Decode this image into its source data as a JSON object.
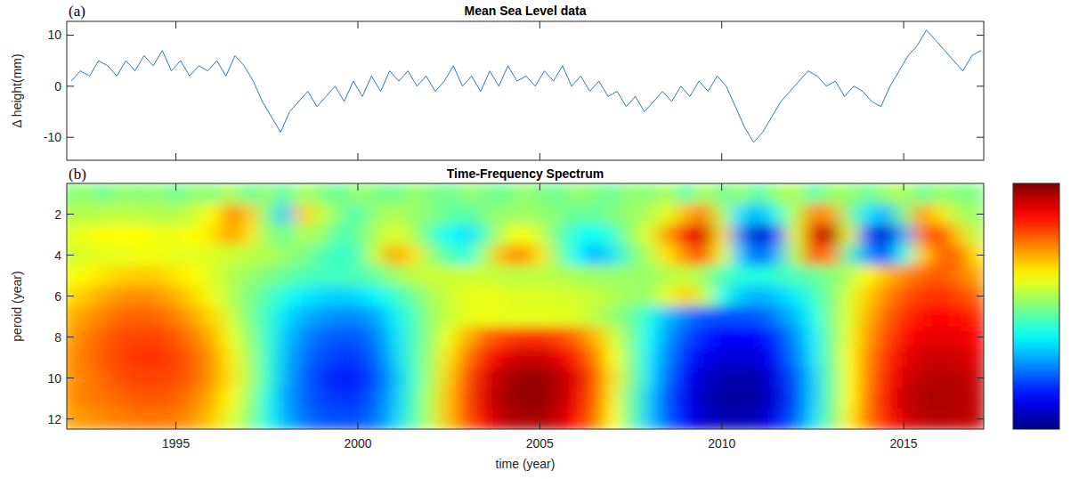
{
  "chart_data": [
    {
      "type": "line",
      "title": "Mean Sea Level data",
      "panel_label": "(a)",
      "y_label": "Δ height(mm)",
      "x": [
        1992.125,
        1992.375,
        1992.625,
        1992.875,
        1993.125,
        1993.375,
        1993.625,
        1993.875,
        1994.125,
        1994.375,
        1994.625,
        1994.875,
        1995.125,
        1995.375,
        1995.625,
        1995.875,
        1996.125,
        1996.375,
        1996.625,
        1996.875,
        1997.125,
        1997.375,
        1997.625,
        1997.875,
        1998.125,
        1998.375,
        1998.625,
        1998.875,
        1999.125,
        1999.375,
        1999.625,
        1999.875,
        2000.125,
        2000.375,
        2000.625,
        2000.875,
        2001.125,
        2001.375,
        2001.625,
        2001.875,
        2002.125,
        2002.375,
        2002.625,
        2002.875,
        2003.125,
        2003.375,
        2003.625,
        2003.875,
        2004.125,
        2004.375,
        2004.625,
        2004.875,
        2005.125,
        2005.375,
        2005.625,
        2005.875,
        2006.125,
        2006.375,
        2006.625,
        2006.875,
        2007.125,
        2007.375,
        2007.625,
        2007.875,
        2008.125,
        2008.375,
        2008.625,
        2008.875,
        2009.125,
        2009.375,
        2009.625,
        2009.875,
        2010.125,
        2010.375,
        2010.625,
        2010.875,
        2011.125,
        2011.375,
        2011.625,
        2011.875,
        2012.125,
        2012.375,
        2012.625,
        2012.875,
        2013.125,
        2013.375,
        2013.625,
        2013.875,
        2014.125,
        2014.375,
        2014.625,
        2014.875,
        2015.125,
        2015.375,
        2015.625,
        2015.875,
        2016.125,
        2016.375,
        2016.625,
        2016.875,
        2017.125
      ],
      "values": [
        1,
        3,
        2,
        5,
        4,
        2,
        5,
        3,
        6,
        4,
        7,
        3,
        5,
        2,
        4,
        3,
        5,
        2,
        6,
        4,
        1,
        -3,
        -6,
        -9,
        -5,
        -3,
        -1,
        -4,
        -2,
        0,
        -3,
        1,
        -2,
        2,
        -1,
        3,
        1,
        3,
        0,
        2,
        -1,
        1,
        4,
        0,
        2,
        -1,
        3,
        0,
        4,
        1,
        2,
        0,
        3,
        1,
        4,
        0,
        2,
        -1,
        1,
        -2,
        -1,
        -4,
        -2,
        -5,
        -3,
        -1,
        -3,
        0,
        -2,
        1,
        -1,
        2,
        0,
        -4,
        -8,
        -11,
        -9,
        -6,
        -3,
        -1,
        1,
        3,
        2,
        0,
        1,
        -2,
        0,
        -1,
        -3,
        -4,
        0,
        3,
        6,
        8,
        11,
        9,
        7,
        5,
        3,
        6,
        7
      ],
      "color": "#2e78b5",
      "xlim": [
        1992,
        2017.2
      ],
      "xticks": [
        1995,
        2000,
        2005,
        2010,
        2015
      ],
      "ylim": [
        -14.5,
        12.7
      ],
      "yticks": [
        -10,
        0,
        10
      ],
      "tick_labels": "y",
      "grid": false
    },
    {
      "type": "heatmap",
      "title": "Time-Frequency Spectrum",
      "panel_label": "(b)",
      "x_label": "time (year)",
      "y_label": "peroid (year)",
      "x": [
        1992,
        1992.5,
        1993,
        1993.5,
        1994,
        1994.5,
        1995,
        1995.5,
        1996,
        1996.5,
        1997,
        1997.5,
        1998,
        1998.5,
        1999,
        1999.5,
        2000,
        2000.5,
        2001,
        2001.5,
        2002,
        2002.5,
        2003,
        2003.5,
        2004,
        2004.5,
        2005,
        2005.5,
        2006,
        2006.5,
        2007,
        2007.5,
        2008,
        2008.5,
        2009,
        2009.5,
        2010,
        2010.5,
        2011,
        2011.5,
        2012,
        2012.5,
        2013,
        2013.5,
        2014,
        2014.5,
        2015,
        2015.5,
        2016,
        2016.5,
        2017
      ],
      "y": [
        1,
        2,
        3,
        4,
        5,
        6,
        7,
        8,
        9,
        10,
        11,
        12
      ],
      "z": [
        [
          0,
          0.05,
          -0.05,
          0.05,
          0,
          0.05,
          -0.05,
          0.05,
          0,
          0.1,
          -0.05,
          0.05,
          -0.1,
          0.1,
          0,
          -0.05,
          0.05,
          0,
          -0.05,
          0.05,
          0,
          -0.05,
          0.05,
          0,
          -0.05,
          0.05,
          0,
          -0.05,
          0.05,
          0,
          -0.05,
          0.05,
          0,
          0.1,
          -0.1,
          0.1,
          -0.05,
          0.05,
          -0.1,
          0.05,
          0.1,
          -0.1,
          0.05,
          0.05,
          -0.05,
          0.05,
          0.1,
          -0.05,
          0.05,
          0,
          0
        ],
        [
          0.1,
          0.1,
          0.12,
          0.12,
          0.12,
          0.1,
          0.1,
          0.15,
          0.25,
          0.5,
          0.35,
          0,
          -0.35,
          0.35,
          0.15,
          0,
          -0.1,
          0.05,
          0.1,
          0.05,
          0,
          -0.05,
          -0.1,
          0,
          0.05,
          0.05,
          0.05,
          0,
          -0.05,
          -0.05,
          0,
          0.05,
          0.1,
          0.2,
          0.4,
          0.5,
          0.1,
          -0.3,
          -0.4,
          -0.2,
          0.1,
          0.5,
          0.45,
          0,
          -0.3,
          -0.4,
          0,
          0.45,
          0.3,
          0.1,
          0.05
        ],
        [
          0.2,
          0.22,
          0.25,
          0.25,
          0.25,
          0.22,
          0.22,
          0.25,
          0.3,
          0.45,
          0.3,
          0.05,
          -0.05,
          0.1,
          0.05,
          -0.1,
          -0.05,
          0.1,
          0.2,
          0.1,
          -0.1,
          -0.25,
          -0.3,
          -0.1,
          0.15,
          0.25,
          0.15,
          -0.05,
          -0.2,
          -0.25,
          -0.15,
          0.05,
          0.2,
          0.45,
          0.75,
          0.85,
          0.3,
          -0.5,
          -0.85,
          -0.6,
          0.2,
          0.8,
          0.9,
          0.2,
          -0.6,
          -0.85,
          -0.4,
          0.5,
          0.7,
          0.35,
          0.1
        ],
        [
          0.15,
          0.18,
          0.2,
          0.2,
          0.22,
          0.22,
          0.2,
          0.2,
          0.18,
          0.15,
          0.12,
          0.1,
          0.05,
          0,
          -0.1,
          -0.15,
          -0.1,
          0.15,
          0.45,
          0.3,
          0.05,
          -0.1,
          -0.2,
          0.1,
          0.4,
          0.5,
          0.3,
          0,
          -0.25,
          -0.4,
          -0.3,
          -0.05,
          0.1,
          0.3,
          0.5,
          0.6,
          0.2,
          -0.35,
          -0.6,
          -0.4,
          0.1,
          0.6,
          0.5,
          -0.1,
          -0.45,
          -0.6,
          -0.2,
          0.35,
          0.55,
          0.55,
          0.3
        ],
        [
          0.22,
          0.26,
          0.3,
          0.33,
          0.35,
          0.34,
          0.3,
          0.25,
          0.18,
          0.1,
          0.05,
          0,
          -0.05,
          -0.1,
          -0.12,
          -0.12,
          -0.1,
          -0.05,
          0.05,
          0.12,
          0.15,
          0.15,
          0.15,
          0.15,
          0.12,
          0.12,
          0.12,
          0.1,
          0.08,
          0.05,
          0.05,
          0.05,
          0.05,
          0.1,
          0.15,
          0.05,
          -0.1,
          -0.18,
          -0.2,
          -0.15,
          -0.1,
          -0.05,
          0,
          0.1,
          0.25,
          0.38,
          0.48,
          0.55,
          0.58,
          0.52,
          0.42
        ],
        [
          0.3,
          0.36,
          0.42,
          0.46,
          0.48,
          0.46,
          0.4,
          0.32,
          0.22,
          0.1,
          0,
          -0.1,
          -0.2,
          -0.28,
          -0.32,
          -0.34,
          -0.32,
          -0.26,
          -0.15,
          -0.04,
          0.08,
          0.15,
          0.2,
          0.22,
          0.2,
          0.18,
          0.18,
          0.18,
          0.16,
          0.14,
          0.1,
          0.05,
          0.05,
          0.2,
          0.35,
          0.15,
          -0.2,
          -0.35,
          -0.4,
          -0.36,
          -0.28,
          -0.15,
          0,
          0.18,
          0.34,
          0.48,
          0.58,
          0.64,
          0.66,
          0.62,
          0.55
        ],
        [
          0.38,
          0.45,
          0.5,
          0.55,
          0.56,
          0.55,
          0.5,
          0.42,
          0.32,
          0.16,
          0,
          -0.15,
          -0.3,
          -0.4,
          -0.45,
          -0.48,
          -0.48,
          -0.42,
          -0.28,
          -0.12,
          0.05,
          0.15,
          0.2,
          0.22,
          0.2,
          0.2,
          0.2,
          0.2,
          0.18,
          0.12,
          0.05,
          -0.05,
          -0.2,
          -0.38,
          -0.5,
          -0.58,
          -0.6,
          -0.6,
          -0.58,
          -0.5,
          -0.38,
          -0.22,
          0,
          0.2,
          0.4,
          0.55,
          0.66,
          0.72,
          0.74,
          0.72,
          0.68
        ],
        [
          0.42,
          0.5,
          0.56,
          0.6,
          0.62,
          0.62,
          0.58,
          0.5,
          0.4,
          0.22,
          0.04,
          -0.15,
          -0.35,
          -0.48,
          -0.55,
          -0.58,
          -0.58,
          -0.5,
          -0.32,
          -0.12,
          0.05,
          0.22,
          0.4,
          0.55,
          0.62,
          0.66,
          0.66,
          0.62,
          0.55,
          0.4,
          0.18,
          -0.02,
          -0.25,
          -0.45,
          -0.6,
          -0.7,
          -0.74,
          -0.76,
          -0.74,
          -0.65,
          -0.48,
          -0.28,
          -0.02,
          0.22,
          0.44,
          0.6,
          0.72,
          0.78,
          0.8,
          0.78,
          0.74
        ],
        [
          0.45,
          0.52,
          0.58,
          0.62,
          0.65,
          0.65,
          0.62,
          0.55,
          0.45,
          0.28,
          0.08,
          -0.15,
          -0.38,
          -0.52,
          -0.6,
          -0.64,
          -0.64,
          -0.55,
          -0.35,
          -0.12,
          0.08,
          0.3,
          0.52,
          0.7,
          0.8,
          0.85,
          0.85,
          0.8,
          0.7,
          0.52,
          0.25,
          0,
          -0.28,
          -0.5,
          -0.68,
          -0.78,
          -0.82,
          -0.84,
          -0.82,
          -0.72,
          -0.52,
          -0.3,
          -0.02,
          0.25,
          0.48,
          0.66,
          0.78,
          0.84,
          0.86,
          0.84,
          0.8
        ],
        [
          0.45,
          0.5,
          0.55,
          0.6,
          0.62,
          0.62,
          0.6,
          0.55,
          0.45,
          0.3,
          0.1,
          -0.15,
          -0.4,
          -0.55,
          -0.65,
          -0.7,
          -0.7,
          -0.6,
          -0.4,
          -0.15,
          0.1,
          0.35,
          0.6,
          0.8,
          0.9,
          0.95,
          0.95,
          0.9,
          0.8,
          0.6,
          0.3,
          0,
          -0.3,
          -0.55,
          -0.75,
          -0.85,
          -0.9,
          -0.92,
          -0.9,
          -0.8,
          -0.6,
          -0.35,
          -0.05,
          0.25,
          0.5,
          0.7,
          0.82,
          0.88,
          0.9,
          0.88,
          0.85
        ],
        [
          0.45,
          0.5,
          0.52,
          0.55,
          0.58,
          0.58,
          0.56,
          0.5,
          0.4,
          0.25,
          0.05,
          -0.2,
          -0.42,
          -0.55,
          -0.62,
          -0.65,
          -0.65,
          -0.55,
          -0.38,
          -0.12,
          0.12,
          0.38,
          0.62,
          0.82,
          0.92,
          0.96,
          0.96,
          0.9,
          0.78,
          0.58,
          0.28,
          -0.05,
          -0.35,
          -0.6,
          -0.78,
          -0.88,
          -0.93,
          -0.95,
          -0.93,
          -0.82,
          -0.62,
          -0.35,
          -0.05,
          0.25,
          0.52,
          0.72,
          0.85,
          0.9,
          0.92,
          0.9,
          0.88
        ],
        [
          0.42,
          0.45,
          0.48,
          0.5,
          0.52,
          0.52,
          0.5,
          0.45,
          0.35,
          0.2,
          0.02,
          -0.2,
          -0.4,
          -0.52,
          -0.58,
          -0.6,
          -0.6,
          -0.52,
          -0.35,
          -0.1,
          0.12,
          0.38,
          0.6,
          0.78,
          0.88,
          0.92,
          0.92,
          0.86,
          0.74,
          0.55,
          0.25,
          -0.05,
          -0.35,
          -0.58,
          -0.75,
          -0.85,
          -0.9,
          -0.9,
          -0.88,
          -0.78,
          -0.58,
          -0.32,
          -0.02,
          0.28,
          0.52,
          0.7,
          0.82,
          0.88,
          0.9,
          0.88,
          0.86
        ]
      ],
      "zlim": [
        -1,
        1
      ],
      "xlim": [
        1992,
        2017.2
      ],
      "xticks": [
        1995,
        2000,
        2005,
        2010,
        2015
      ],
      "ylim": [
        12.5,
        0.5
      ],
      "yticks": [
        2,
        4,
        6,
        8,
        10,
        12
      ],
      "grid": false
    }
  ]
}
